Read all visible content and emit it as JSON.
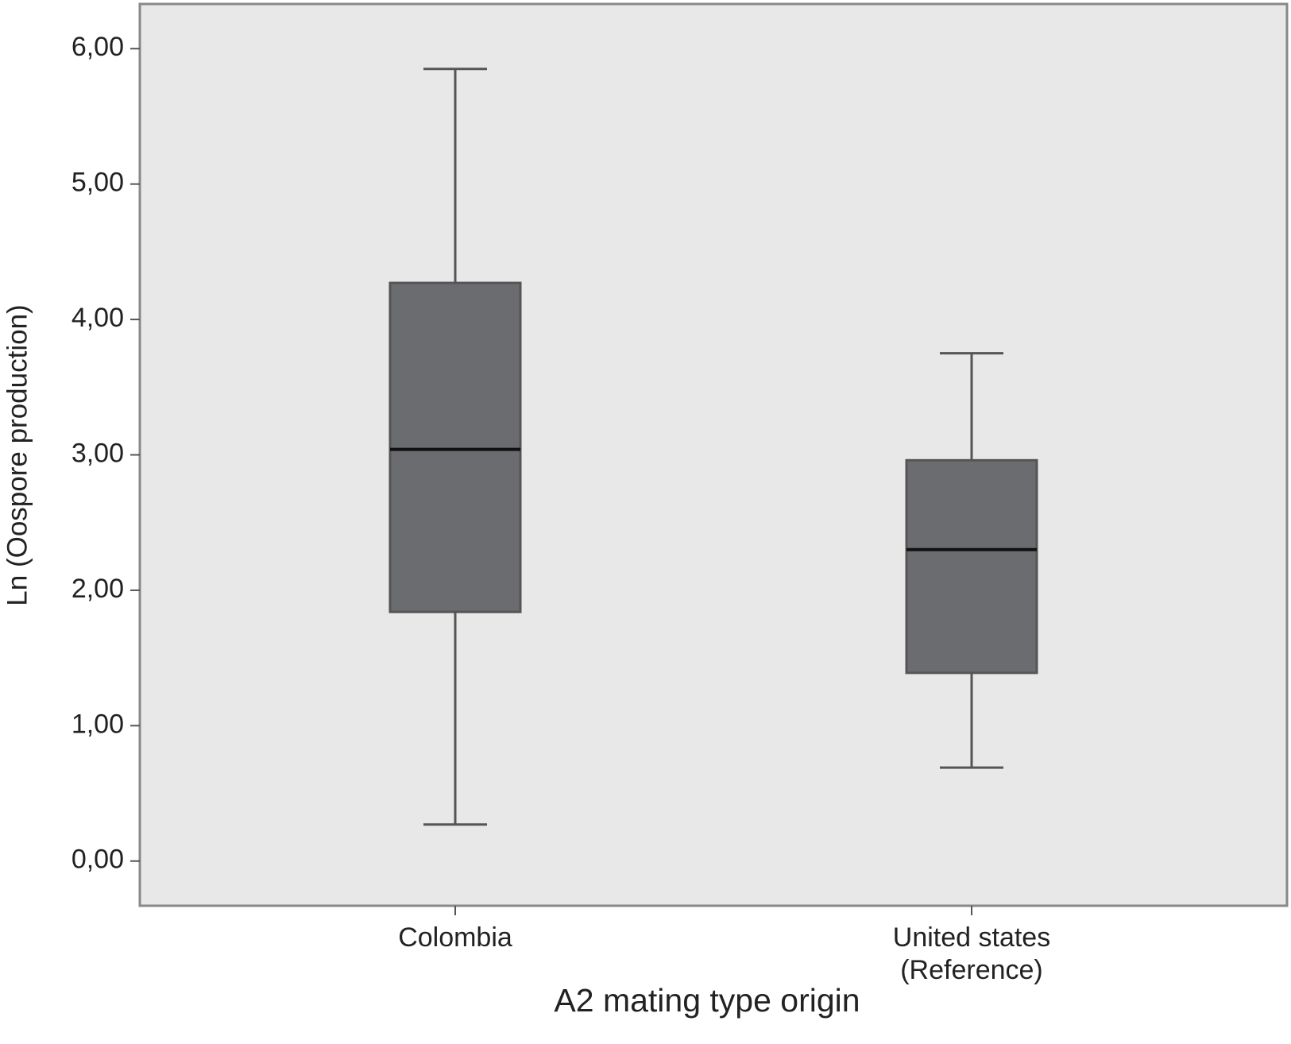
{
  "chart_data": {
    "type": "box",
    "x_label": "A2 mating type origin",
    "y_label": "Ln (Oospore production)",
    "categories": [
      "Colombia",
      "United states\n(Reference)"
    ],
    "boxes": [
      {
        "min": 0.27,
        "q1": 1.84,
        "median": 3.04,
        "q3": 4.27,
        "max": 5.85
      },
      {
        "min": 0.69,
        "q1": 1.39,
        "median": 2.3,
        "q3": 2.96,
        "max": 3.75
      }
    ],
    "color": "#6b6c70",
    "background": "#e8e8e8",
    "ylim": [
      -0.33,
      6.33
    ],
    "yticks": [
      {
        "value": 0,
        "label": "0,00"
      },
      {
        "value": 1,
        "label": "1,00"
      },
      {
        "value": 2,
        "label": "2,00"
      },
      {
        "value": 3,
        "label": "3,00"
      },
      {
        "value": 4,
        "label": "4,00"
      },
      {
        "value": 5,
        "label": "5,00"
      },
      {
        "value": 6,
        "label": "6,00"
      }
    ]
  }
}
